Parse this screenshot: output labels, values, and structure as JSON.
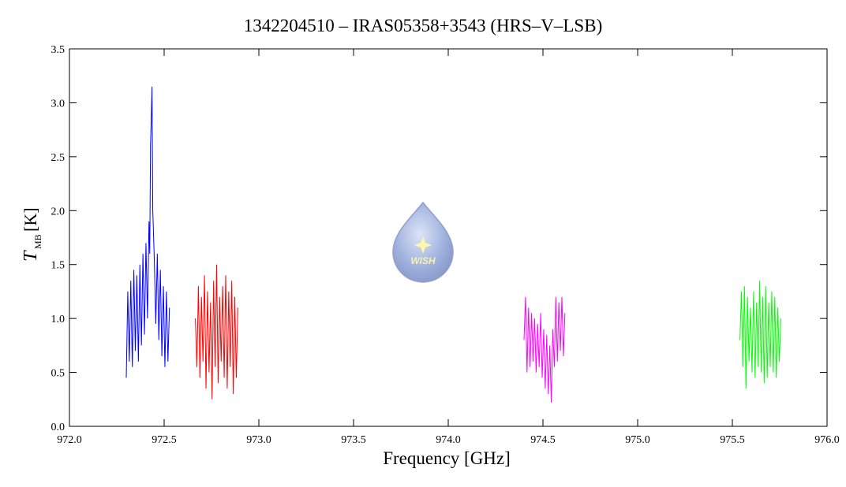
{
  "chart_data": {
    "type": "line",
    "title": "1342204510 – IRAS05358+3543 (HRS–V–LSB)",
    "xlabel": "Frequency [GHz]",
    "ylabel": "T",
    "ylabel_sub": "MB",
    "ylabel_unit": "[K]",
    "watermark": "WISH",
    "xlim": [
      972.0,
      976.0
    ],
    "xticks": [
      {
        "value": 972,
        "label": "972.0"
      },
      972.5,
      {
        "value": 973,
        "label": "973.0"
      },
      973.5,
      {
        "value": 974,
        "label": "974.0"
      },
      974.5,
      {
        "value": 975,
        "label": "975.0"
      },
      975.5,
      {
        "value": 976,
        "label": "976.0"
      }
    ],
    "ylim": [
      0,
      3.5
    ],
    "yticks": [
      {
        "value": 0,
        "label": "0.0"
      },
      0.5,
      {
        "value": 1,
        "label": "1.0"
      },
      1.5,
      {
        "value": 2,
        "label": "2.0"
      },
      2.5,
      {
        "value": 3,
        "label": "3.0"
      },
      3.5
    ],
    "series": [
      {
        "color": "#0000ff",
        "x": [
          972.3,
          972.308,
          972.316,
          972.324,
          972.332,
          972.34,
          972.348,
          972.356,
          972.364,
          972.372,
          972.38,
          972.388,
          972.396,
          972.404,
          972.412,
          972.42,
          972.424,
          972.428,
          972.432,
          972.436,
          972.44,
          972.448,
          972.456,
          972.464,
          972.472,
          972.48,
          972.488,
          972.496,
          972.504,
          972.512,
          972.52,
          972.528
        ],
        "values": [
          0.45,
          1.25,
          0.6,
          1.35,
          0.55,
          1.45,
          0.7,
          1.4,
          0.6,
          1.5,
          0.75,
          1.6,
          0.85,
          1.7,
          1.0,
          1.9,
          1.6,
          2.6,
          2.85,
          3.15,
          2.0,
          1.55,
          0.95,
          1.6,
          0.8,
          1.45,
          0.65,
          1.3,
          0.55,
          1.25,
          0.6,
          1.1
        ]
      },
      {
        "color": "#ff0000",
        "x": [
          972.665,
          972.673,
          972.681,
          972.689,
          972.697,
          972.705,
          972.713,
          972.721,
          972.729,
          972.737,
          972.745,
          972.753,
          972.761,
          972.769,
          972.777,
          972.785,
          972.793,
          972.801,
          972.809,
          972.817,
          972.825,
          972.833,
          972.841,
          972.849,
          972.857,
          972.865,
          972.873,
          972.881,
          972.889
        ],
        "values": [
          1.0,
          0.55,
          1.3,
          0.45,
          1.2,
          0.6,
          1.4,
          0.35,
          1.25,
          0.5,
          1.15,
          0.25,
          1.35,
          0.55,
          1.5,
          0.4,
          1.2,
          0.6,
          1.3,
          0.45,
          1.4,
          0.35,
          1.25,
          0.55,
          1.35,
          0.3,
          1.2,
          0.45,
          1.1
        ]
      },
      {
        "color": "#ff00ff",
        "x": [
          974.4,
          974.408,
          974.416,
          974.424,
          974.432,
          974.44,
          974.448,
          974.456,
          974.464,
          974.472,
          974.48,
          974.488,
          974.496,
          974.504,
          974.512,
          974.52,
          974.528,
          974.536,
          974.544,
          974.552,
          974.56,
          974.568,
          974.576,
          974.584,
          974.592,
          974.6,
          974.608,
          974.616
        ],
        "values": [
          0.8,
          1.2,
          0.5,
          1.1,
          0.55,
          1.05,
          0.6,
          1.0,
          0.5,
          0.95,
          0.55,
          1.05,
          0.45,
          0.9,
          0.35,
          0.85,
          0.3,
          0.75,
          0.22,
          0.9,
          0.55,
          1.2,
          0.6,
          1.15,
          0.7,
          1.2,
          0.65,
          1.05
        ]
      },
      {
        "color": "#00ff00",
        "x": [
          975.54,
          975.548,
          975.556,
          975.564,
          975.572,
          975.58,
          975.588,
          975.596,
          975.604,
          975.612,
          975.62,
          975.628,
          975.636,
          975.644,
          975.652,
          975.66,
          975.668,
          975.676,
          975.684,
          975.692,
          975.7,
          975.708,
          975.716,
          975.724,
          975.732,
          975.74,
          975.748,
          975.756
        ],
        "values": [
          0.8,
          1.25,
          0.55,
          1.3,
          0.35,
          1.2,
          0.6,
          1.1,
          0.5,
          1.25,
          0.45,
          1.15,
          0.55,
          1.35,
          0.5,
          1.2,
          0.4,
          1.3,
          0.45,
          1.15,
          0.55,
          1.25,
          0.5,
          1.2,
          0.45,
          1.1,
          0.6,
          1.0
        ]
      }
    ]
  }
}
